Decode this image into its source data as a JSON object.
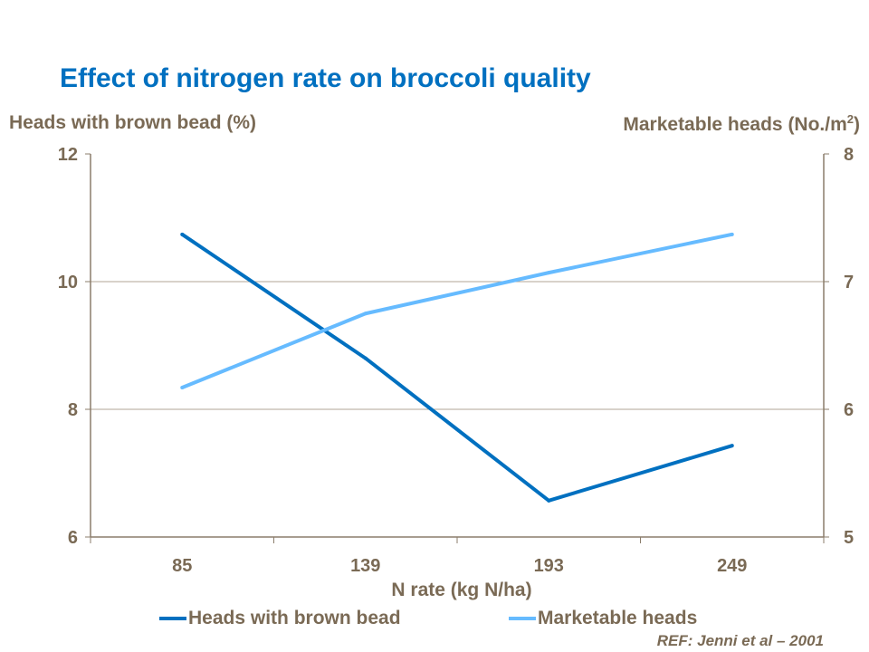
{
  "chart_data": {
    "type": "line",
    "title": "Effect of nitrogen rate on broccoli quality",
    "xlabel": "N rate (kg N/ha)",
    "ylabel_left": "Heads with brown bead (%)",
    "ylabel_right": "Marketable heads (No./m2)",
    "categories": [
      "85",
      "139",
      "193",
      "249"
    ],
    "ylim_left": [
      6,
      12
    ],
    "yticks_left": [
      "6",
      "8",
      "10",
      "12"
    ],
    "ylim_right": [
      5,
      8
    ],
    "yticks_right": [
      "5",
      "6",
      "7",
      "8"
    ],
    "grid": true,
    "legend_position": "bottom",
    "series": [
      {
        "name": "Heads with brown bead",
        "axis": "left",
        "color": "#0070c0",
        "values": [
          10.74,
          8.8,
          6.57,
          7.43
        ]
      },
      {
        "name": "Marketable heads",
        "axis": "right",
        "color": "#66bbff",
        "values": [
          6.17,
          6.75,
          7.07,
          7.37
        ]
      }
    ]
  },
  "reference": "REF: Jenni et al – 2001"
}
